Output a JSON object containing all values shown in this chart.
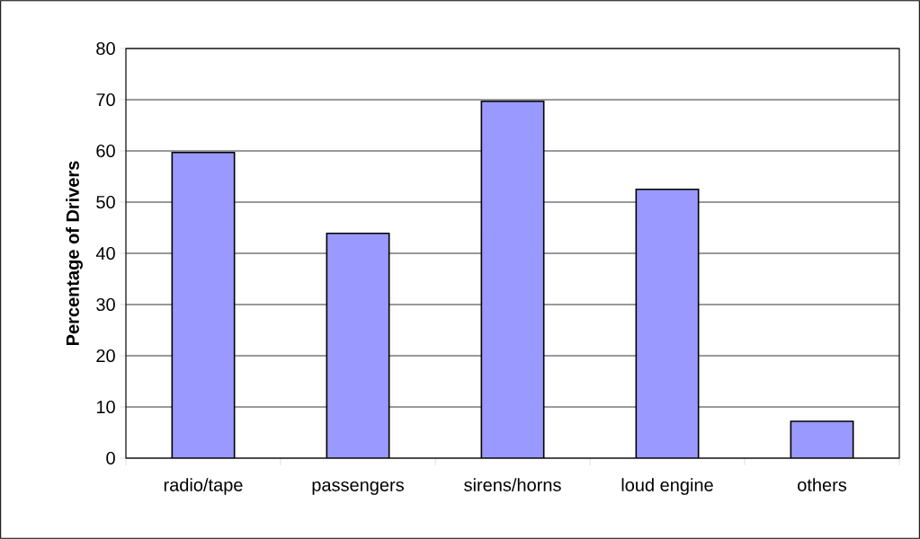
{
  "chart_data": {
    "type": "bar",
    "ylabel": "**Percentage of Drivers**",
    "categories": [
      "radio/tape",
      "passengers",
      "sirens/horns",
      "loud engine",
      "others"
    ],
    "values": [
      59.7,
      43.9,
      69.7,
      52.5,
      7.2
    ],
    "color": "#9999ff",
    "ylim": [
      0,
      80
    ],
    "yticks": [
      0,
      10,
      20,
      30,
      40,
      50,
      60,
      70,
      80
    ],
    "grid": "y"
  }
}
